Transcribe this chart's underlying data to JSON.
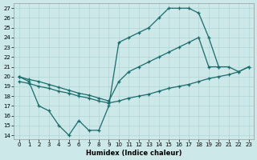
{
  "xlabel": "Humidex (Indice chaleur)",
  "bg_color": "#cce8e8",
  "grid_color": "#b0d5d5",
  "line_color": "#1a6b6b",
  "xlim_min": -0.5,
  "xlim_max": 23.5,
  "ylim_min": 13.6,
  "ylim_max": 27.5,
  "xticks": [
    0,
    1,
    2,
    3,
    4,
    5,
    6,
    7,
    8,
    9,
    10,
    11,
    12,
    13,
    14,
    15,
    16,
    17,
    18,
    19,
    20,
    21,
    22,
    23
  ],
  "yticks": [
    14,
    15,
    16,
    17,
    18,
    19,
    20,
    21,
    22,
    23,
    24,
    25,
    26,
    27
  ],
  "line1_x": [
    0,
    1,
    2,
    3,
    4,
    5,
    6,
    7,
    8,
    9,
    10,
    11,
    12,
    13,
    14,
    15,
    16,
    17,
    18,
    19,
    20
  ],
  "line1_y": [
    20.0,
    19.5,
    17.0,
    16.5,
    15.0,
    14.0,
    15.5,
    14.5,
    14.5,
    17.0,
    23.5,
    24.0,
    24.5,
    25.0,
    26.0,
    27.0,
    27.0,
    27.0,
    26.5,
    24.0,
    21.0
  ],
  "line2_x": [
    0,
    1,
    2,
    3,
    4,
    5,
    6,
    7,
    8,
    9,
    10,
    11,
    12,
    13,
    14,
    15,
    16,
    17,
    18,
    19,
    20,
    21,
    22,
    23
  ],
  "line2_y": [
    20.0,
    19.7,
    19.5,
    19.2,
    18.9,
    18.6,
    18.3,
    18.1,
    17.8,
    17.5,
    19.5,
    20.5,
    21.0,
    21.5,
    22.0,
    22.5,
    23.0,
    23.5,
    24.0,
    21.0,
    21.0,
    21.0,
    20.5,
    21.0
  ],
  "line3_x": [
    0,
    1,
    2,
    3,
    4,
    5,
    6,
    7,
    8,
    9,
    10,
    11,
    12,
    13,
    14,
    15,
    16,
    17,
    18,
    19,
    20,
    21,
    22,
    23
  ],
  "line3_y": [
    19.5,
    19.3,
    19.0,
    18.8,
    18.5,
    18.3,
    18.0,
    17.8,
    17.5,
    17.3,
    17.5,
    17.8,
    18.0,
    18.2,
    18.5,
    18.8,
    19.0,
    19.2,
    19.5,
    19.8,
    20.0,
    20.2,
    20.5,
    21.0
  ]
}
